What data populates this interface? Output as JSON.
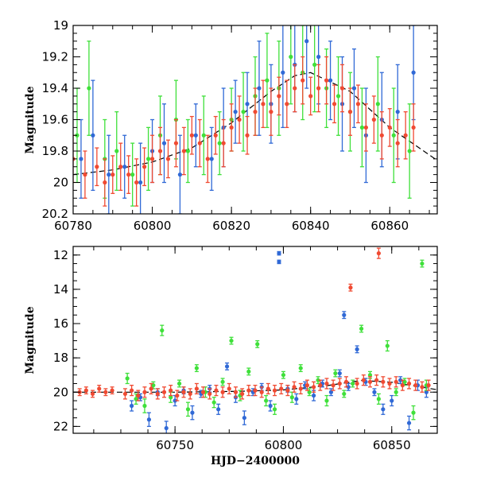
{
  "chart_data": [
    {
      "panel": "top",
      "type": "scatter",
      "title": "",
      "xlabel": "",
      "ylabel": "Magnitude",
      "xlim": [
        60780,
        60872
      ],
      "ylim": [
        20.2,
        19.0
      ],
      "y_inverted": true,
      "x_ticks": [
        "60780",
        "60800",
        "60820",
        "60840",
        "60860"
      ],
      "y_ticks": [
        "19",
        "19.2",
        "19.4",
        "19.6",
        "19.8",
        "20",
        "20.2"
      ],
      "x_tick_values": [
        60780,
        60800,
        60820,
        60840,
        60860
      ],
      "y_tick_values": [
        19.0,
        19.2,
        19.4,
        19.6,
        19.8,
        20.0,
        20.2
      ],
      "error_bars": true,
      "model_curve": {
        "style": "dashed",
        "color": "#000000",
        "x": [
          60780,
          60790,
          60800,
          60810,
          60820,
          60830,
          60836,
          60840,
          60850,
          60860,
          60872
        ],
        "y": [
          19.95,
          19.92,
          19.87,
          19.78,
          19.62,
          19.42,
          19.32,
          19.3,
          19.42,
          19.65,
          19.86
        ]
      },
      "series": [
        {
          "color": "#3069d6",
          "x": [
            60782,
            60785,
            60789,
            60793,
            60797,
            60800,
            60803,
            60807,
            60811,
            60815,
            60818,
            60821,
            60824,
            60827,
            60830,
            60833,
            60836,
            60839,
            60842,
            60845,
            60848,
            60851,
            60854,
            60858,
            60862,
            60866
          ],
          "y": [
            19.85,
            19.7,
            19.95,
            19.9,
            20.0,
            19.8,
            19.75,
            19.95,
            19.7,
            19.85,
            19.65,
            19.55,
            19.5,
            19.4,
            19.5,
            19.3,
            19.25,
            19.1,
            19.2,
            19.35,
            19.5,
            19.4,
            19.7,
            19.6,
            19.55,
            19.3
          ],
          "err": [
            0.25,
            0.35,
            0.25,
            0.2,
            0.25,
            0.2,
            0.25,
            0.25,
            0.2,
            0.2,
            0.25,
            0.2,
            0.2,
            0.3,
            0.25,
            0.35,
            0.3,
            0.3,
            0.3,
            0.25,
            0.3,
            0.25,
            0.3,
            0.3,
            0.3,
            0.3
          ]
        },
        {
          "color": "#3fe03a",
          "x": [
            60781,
            60784,
            60788,
            60791,
            60795,
            60799,
            60802,
            60806,
            60809,
            60813,
            60817,
            60820,
            60823,
            60826,
            60829,
            60832,
            60835,
            60838,
            60841,
            60844,
            60847,
            60850,
            60853,
            60857,
            60861,
            60865
          ],
          "y": [
            19.7,
            19.4,
            19.85,
            19.8,
            19.95,
            19.85,
            19.7,
            19.6,
            19.8,
            19.7,
            19.75,
            19.6,
            19.55,
            19.45,
            19.35,
            19.4,
            19.2,
            19.3,
            19.25,
            19.4,
            19.45,
            19.55,
            19.65,
            19.5,
            19.7,
            19.8
          ],
          "err": [
            0.3,
            0.3,
            0.25,
            0.25,
            0.2,
            0.2,
            0.25,
            0.25,
            0.2,
            0.25,
            0.2,
            0.2,
            0.25,
            0.25,
            0.3,
            0.3,
            0.3,
            0.3,
            0.3,
            0.25,
            0.25,
            0.25,
            0.25,
            0.3,
            0.3,
            0.3
          ]
        },
        {
          "color": "#f04a32",
          "x": [
            60780,
            60783,
            60786,
            60788,
            60790,
            60792,
            60794,
            60796,
            60798,
            60800,
            60802,
            60804,
            60806,
            60808,
            60810,
            60812,
            60814,
            60816,
            60818,
            60820,
            60822,
            60824,
            60826,
            60828,
            60830,
            60832,
            60834,
            60836,
            60838,
            60840,
            60842,
            60844,
            60846,
            60848,
            60850,
            60852,
            60854,
            60856,
            60858,
            60860,
            60862,
            60864,
            60866
          ],
          "y": [
            19.85,
            19.95,
            19.9,
            20.0,
            19.95,
            19.9,
            19.95,
            20.0,
            19.9,
            19.85,
            19.8,
            19.85,
            19.75,
            19.8,
            19.7,
            19.75,
            19.85,
            19.7,
            19.75,
            19.65,
            19.6,
            19.7,
            19.55,
            19.5,
            19.55,
            19.45,
            19.5,
            19.4,
            19.35,
            19.45,
            19.4,
            19.35,
            19.5,
            19.4,
            19.55,
            19.5,
            19.65,
            19.6,
            19.7,
            19.65,
            19.75,
            19.7,
            19.65
          ],
          "err": [
            0.15,
            0.15,
            0.12,
            0.15,
            0.12,
            0.15,
            0.12,
            0.15,
            0.12,
            0.15,
            0.15,
            0.12,
            0.15,
            0.15,
            0.12,
            0.15,
            0.15,
            0.12,
            0.15,
            0.15,
            0.15,
            0.12,
            0.15,
            0.15,
            0.15,
            0.12,
            0.15,
            0.15,
            0.15,
            0.12,
            0.15,
            0.15,
            0.12,
            0.15,
            0.15,
            0.12,
            0.15,
            0.15,
            0.15,
            0.12,
            0.15,
            0.15,
            0.15
          ]
        }
      ]
    },
    {
      "panel": "bottom",
      "type": "scatter",
      "title": "",
      "xlabel": "HJD−2400000",
      "ylabel": "Magnitude",
      "xlim": [
        60703,
        60871
      ],
      "ylim": [
        22.4,
        11.5
      ],
      "y_inverted": true,
      "x_ticks": [
        "60750",
        "60800",
        "60850"
      ],
      "y_ticks": [
        "12",
        "14",
        "16",
        "18",
        "20",
        "22"
      ],
      "x_tick_values": [
        60750,
        60800,
        60850
      ],
      "y_tick_values": [
        12,
        14,
        16,
        18,
        20,
        22
      ],
      "error_bars": true,
      "model_curve": {
        "style": "dashed",
        "color": "#000000",
        "x": [
          60703,
          60750,
          60780,
          60800,
          60820,
          60836,
          60850,
          60871
        ],
        "y": [
          20.0,
          20.0,
          19.95,
          19.87,
          19.62,
          19.32,
          19.42,
          19.86
        ]
      },
      "series": [
        {
          "color": "#3069d6",
          "x": [
            60730,
            60734,
            60738,
            60742,
            60746,
            60750,
            60754,
            60758,
            60762,
            60766,
            60770,
            60774,
            60778,
            60782,
            60786,
            60790,
            60794,
            60798,
            60798,
            60802,
            60806,
            60810,
            60814,
            60818,
            60822,
            60826,
            60828,
            60830,
            60834,
            60838,
            60842,
            60846,
            60850,
            60854,
            60858,
            60862,
            60866
          ],
          "y": [
            20.8,
            20.3,
            21.6,
            20.0,
            22.1,
            20.5,
            19.9,
            21.2,
            20.1,
            19.8,
            21.0,
            18.5,
            20.3,
            21.5,
            20.0,
            19.7,
            20.8,
            11.9,
            12.4,
            19.8,
            20.4,
            19.6,
            20.2,
            19.5,
            20.0,
            18.9,
            15.5,
            19.7,
            17.5,
            19.4,
            20.0,
            21.0,
            20.5,
            19.3,
            21.8,
            19.6,
            20.0
          ],
          "err": [
            0.3,
            0.2,
            0.4,
            0.2,
            0.4,
            0.3,
            0.2,
            0.4,
            0.2,
            0.2,
            0.3,
            0.2,
            0.3,
            0.4,
            0.2,
            0.2,
            0.3,
            0.1,
            0.1,
            0.2,
            0.3,
            0.2,
            0.3,
            0.2,
            0.2,
            0.2,
            0.2,
            0.2,
            0.2,
            0.2,
            0.2,
            0.3,
            0.3,
            0.2,
            0.4,
            0.3,
            0.3
          ]
        },
        {
          "color": "#3fe03a",
          "x": [
            60728,
            60732,
            60736,
            60740,
            60744,
            60748,
            60752,
            60756,
            60760,
            60764,
            60768,
            60772,
            60776,
            60780,
            60784,
            60788,
            60792,
            60796,
            60800,
            60804,
            60808,
            60812,
            60816,
            60820,
            60824,
            60828,
            60832,
            60836,
            60840,
            60844,
            60848,
            60852,
            60856,
            60860,
            60864,
            60866
          ],
          "y": [
            19.2,
            20.4,
            20.8,
            19.6,
            16.4,
            20.3,
            19.5,
            21.0,
            18.6,
            20.0,
            20.6,
            19.4,
            17.0,
            20.2,
            18.8,
            17.2,
            20.5,
            21.0,
            19.0,
            20.3,
            18.6,
            20.0,
            19.3,
            20.5,
            18.9,
            20.1,
            19.5,
            16.3,
            19.0,
            20.4,
            17.3,
            20.0,
            19.4,
            21.2,
            12.5,
            19.6
          ],
          "err": [
            0.3,
            0.3,
            0.4,
            0.2,
            0.3,
            0.3,
            0.2,
            0.4,
            0.2,
            0.3,
            0.3,
            0.2,
            0.2,
            0.3,
            0.2,
            0.2,
            0.3,
            0.3,
            0.2,
            0.3,
            0.2,
            0.2,
            0.2,
            0.3,
            0.2,
            0.2,
            0.2,
            0.2,
            0.2,
            0.3,
            0.3,
            0.2,
            0.2,
            0.4,
            0.2,
            0.3
          ]
        },
        {
          "color": "#f04a32",
          "x": [
            60706,
            60709,
            60712,
            60715,
            60718,
            60721,
            60727,
            60730,
            60733,
            60736,
            60739,
            60742,
            60745,
            60748,
            60751,
            60754,
            60757,
            60760,
            60763,
            60766,
            60769,
            60772,
            60775,
            60778,
            60781,
            60784,
            60787,
            60790,
            60793,
            60796,
            60799,
            60802,
            60805,
            60808,
            60811,
            60814,
            60817,
            60820,
            60823,
            60826,
            60829,
            60831,
            60834,
            60837,
            60840,
            60843,
            60844,
            60846,
            60849,
            60852,
            60855,
            60858,
            60861,
            60864,
            60867
          ],
          "y": [
            20.0,
            19.9,
            20.1,
            19.8,
            20.0,
            19.9,
            20.1,
            19.9,
            20.2,
            20.0,
            19.8,
            20.1,
            20.0,
            19.9,
            20.2,
            20.0,
            20.1,
            19.8,
            20.0,
            20.1,
            19.9,
            20.0,
            19.8,
            20.0,
            20.1,
            19.9,
            19.9,
            20.0,
            19.8,
            19.9,
            19.8,
            19.9,
            19.7,
            19.8,
            19.6,
            19.7,
            19.6,
            19.5,
            19.6,
            19.5,
            19.4,
            13.9,
            19.5,
            19.3,
            19.4,
            19.3,
            11.9,
            19.4,
            19.5,
            19.4,
            19.6,
            19.5,
            19.6,
            19.7,
            19.6
          ],
          "err": [
            0.2,
            0.2,
            0.2,
            0.2,
            0.2,
            0.2,
            0.3,
            0.3,
            0.3,
            0.3,
            0.3,
            0.3,
            0.3,
            0.3,
            0.3,
            0.3,
            0.3,
            0.3,
            0.3,
            0.3,
            0.3,
            0.3,
            0.3,
            0.3,
            0.3,
            0.3,
            0.3,
            0.3,
            0.3,
            0.3,
            0.3,
            0.3,
            0.3,
            0.3,
            0.3,
            0.3,
            0.3,
            0.3,
            0.3,
            0.3,
            0.3,
            0.2,
            0.3,
            0.3,
            0.3,
            0.3,
            0.3,
            0.3,
            0.3,
            0.3,
            0.3,
            0.3,
            0.3,
            0.3,
            0.3
          ]
        }
      ]
    }
  ]
}
